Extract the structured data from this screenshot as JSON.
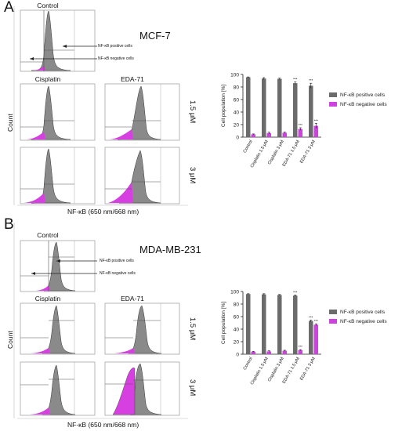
{
  "panels": [
    {
      "letter": "A",
      "cell_line": "MCF-7",
      "control_label": "Control",
      "treatments": [
        "Cisplatin",
        "EDA-71"
      ],
      "doses": [
        "1.5 μM",
        "3 μM"
      ],
      "y_axis": "Count",
      "x_axis": "NF-κB (650 nm/668 nm)",
      "annotations": [
        "NF-κB positive cells",
        "NF-κB negative cells"
      ]
    },
    {
      "letter": "B",
      "cell_line": "MDA-MB-231",
      "control_label": "Control",
      "treatments": [
        "Cisplatin",
        "EDA-71"
      ],
      "doses": [
        "1.5 μM",
        "3 μM"
      ],
      "y_axis": "Count",
      "x_axis": "NF-κB (650 nm/668 nm)",
      "annotations": [
        "NF-κB positive cells",
        "NF-κB negative cells"
      ]
    }
  ],
  "colors": {
    "positive": "#6b6b6b",
    "negative": "#cc44dd",
    "hist_fill": "#8a8a8a",
    "magenta": "#d63fe0"
  },
  "chart_data": [
    {
      "type": "bar",
      "categories": [
        "Control",
        "Cisplatin 1.5 μM",
        "Cisplatin 3 μM",
        "EDA-71 1.5 μM",
        "EDA-71 3 μM"
      ],
      "series": [
        {
          "name": "NF-κB positive cells",
          "values": [
            95.5,
            93.5,
            93,
            86,
            82
          ]
        },
        {
          "name": "NF-κB negative cells",
          "values": [
            4.5,
            6.5,
            7,
            13,
            18
          ]
        }
      ],
      "errors": [
        [
          0.6,
          1.5,
          1.0,
          2.0,
          4.0
        ],
        [
          0.6,
          1.5,
          1.0,
          2.0,
          4.0
        ]
      ],
      "significance": [
        [
          "",
          "",
          "",
          "***",
          "***"
        ],
        [
          "",
          "",
          "",
          "***",
          "***"
        ]
      ],
      "ylabel": "Cell population [%]",
      "yticks": [
        "0",
        "20",
        "40",
        "60",
        "80",
        "100"
      ],
      "ylim": [
        0,
        100
      ],
      "legend": "right"
    },
    {
      "type": "bar",
      "categories": [
        "Control",
        "Cisplatin 1.5 μM",
        "Cisplatin 3 μM",
        "EDA-71 1.5 μM",
        "EDA-71 3 μM"
      ],
      "series": [
        {
          "name": "NF-κB positive cells",
          "values": [
            96,
            95.5,
            94.5,
            93.5,
            53
          ]
        },
        {
          "name": "NF-κB negative cells",
          "values": [
            4,
            4.5,
            5.5,
            6.5,
            47
          ]
        }
      ],
      "errors": [
        [
          0.5,
          1.0,
          0.8,
          0.8,
          1.5
        ],
        [
          0.5,
          1.0,
          0.8,
          0.8,
          1.5
        ]
      ],
      "significance": [
        [
          "",
          "",
          "",
          "***",
          "***"
        ],
        [
          "",
          "",
          "",
          "***",
          "***"
        ]
      ],
      "ylabel": "Cell population [%]",
      "yticks": [
        "0",
        "20",
        "40",
        "60",
        "80",
        "100"
      ],
      "ylim": [
        0,
        100
      ],
      "legend": "right"
    }
  ]
}
